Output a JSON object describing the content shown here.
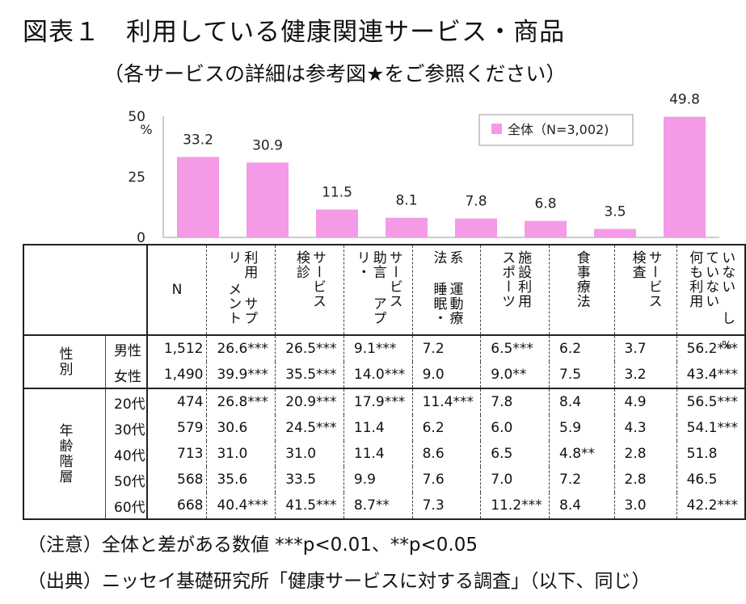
{
  "title": "図表１　利用している健康関連サービス・商品",
  "subtitle": "（各サービスの詳細は参考図★をご参照ください）",
  "colors": {
    "bar": "#f59ae6",
    "legend_bar": "#f59ae6"
  },
  "chart_data": {
    "type": "bar",
    "categories": [
      "利用サプリメント",
      "検診サービス",
      "アプリ助言サービス",
      "睡眠・運動療法系",
      "スポーツ施設利用",
      "食事療法",
      "検査サービス",
      "何も利用していない"
    ],
    "series": [
      {
        "name": "全体（N=3,002)",
        "values": [
          33.2,
          30.9,
          11.5,
          8.1,
          7.8,
          6.8,
          3.5,
          49.8
        ]
      }
    ],
    "value_labels": [
      "33.2",
      "30.9",
      "11.5",
      "8.1",
      "7.8",
      "6.8",
      "3.5",
      "49.8"
    ],
    "yticks": [
      "0",
      "25",
      "50"
    ],
    "ylim": [
      0,
      50
    ],
    "yunit": "%",
    "legend": "top-right"
  },
  "table": {
    "n_header": "N",
    "col_headers": [
      [
        "利用",
        "サプリ",
        "メント"
      ],
      [
        "サービス",
        "検診"
      ],
      [
        "サービス",
        "助言",
        "アプリ・"
      ],
      [
        "系",
        "運動療法",
        "睡眠・"
      ],
      [
        "施設利用",
        "スポーツ"
      ],
      [
        "食事療法"
      ],
      [
        "サービス",
        "検査"
      ],
      [
        "いない",
        "していない",
        "何も利用"
      ]
    ],
    "percent_mark": "%",
    "groups": [
      {
        "label": "性別",
        "rows": [
          {
            "sub": "男性",
            "n": "1,512",
            "cells": [
              "26.6***",
              "26.5***",
              "9.1***",
              "7.2",
              "6.5***",
              "6.2",
              "3.7",
              "56.2***"
            ]
          },
          {
            "sub": "女性",
            "n": "1,490",
            "cells": [
              "39.9***",
              "35.5***",
              "14.0***",
              "9.0",
              "9.0**",
              "7.5",
              "3.2",
              "43.4***"
            ]
          }
        ]
      },
      {
        "label": "年齢階層",
        "rows": [
          {
            "sub": "20代",
            "n": "474",
            "cells": [
              "26.8***",
              "20.9***",
              "17.9***",
              "11.4***",
              "7.8",
              "8.4",
              "4.9",
              "56.5***"
            ]
          },
          {
            "sub": "30代",
            "n": "579",
            "cells": [
              "30.6",
              "24.5***",
              "11.4",
              "6.2",
              "6.0",
              "5.9",
              "4.3",
              "54.1***"
            ]
          },
          {
            "sub": "40代",
            "n": "713",
            "cells": [
              "31.0",
              "31.0",
              "11.4",
              "8.6",
              "6.5",
              "4.8**",
              "2.8",
              "51.8"
            ]
          },
          {
            "sub": "50代",
            "n": "568",
            "cells": [
              "35.6",
              "33.5",
              "9.9",
              "7.6",
              "7.0",
              "7.2",
              "2.8",
              "46.5"
            ]
          },
          {
            "sub": "60代",
            "n": "668",
            "cells": [
              "40.4***",
              "41.5***",
              "8.7**",
              "7.3",
              "11.2***",
              "8.4",
              "3.0",
              "42.2***"
            ]
          }
        ]
      }
    ]
  },
  "notes": {
    "note1": "（注意）全体と差がある数値 ***p<0.01、**p<0.05",
    "note2": "（出典）ニッセイ基礎研究所「健康サービスに対する調査」（以下、同じ）"
  }
}
